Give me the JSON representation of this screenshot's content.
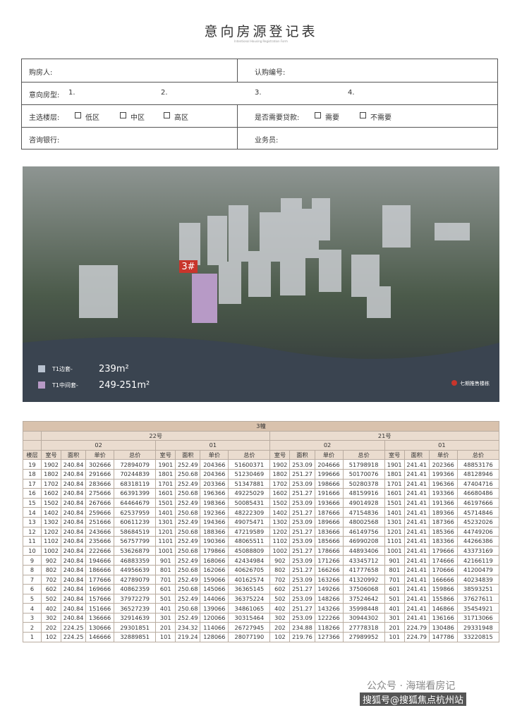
{
  "header": {
    "title": "意向房源登记表",
    "subtitle": "Intentional Housing Registration Form"
  },
  "form": {
    "buyer": "购房人:",
    "subscription_no": "认购编号:",
    "intended_type": "意向房型:",
    "type_options": [
      "1.",
      "2.",
      "3.",
      "4."
    ],
    "floor_pref": "主选楼层:",
    "floor_options": [
      "低区",
      "中区",
      "高区"
    ],
    "loan": "是否需要贷款:",
    "loan_options": [
      "需要",
      "不需要"
    ],
    "bank": "咨询银行:",
    "salesperson": "业务员:"
  },
  "image": {
    "tag": "3#",
    "legend": [
      {
        "name": "T1边套-",
        "area": "239m²"
      },
      {
        "name": "T1中间套-",
        "area": "249-251m²"
      }
    ],
    "marker": "七期推售楼栋"
  },
  "table": {
    "title": "3幢",
    "buildings": [
      "22号",
      "21号"
    ],
    "units": [
      "02",
      "01",
      "02",
      "01"
    ],
    "floor_label": "楼层",
    "unit_columns": [
      "室号",
      "面积",
      "单价",
      "总价"
    ],
    "rows": [
      [
        "19",
        "1902",
        "240.84",
        "302666",
        "72894079",
        "1901",
        "252.49",
        "204366",
        "51600371",
        "1902",
        "253.09",
        "204666",
        "51798918",
        "1901",
        "241.41",
        "202366",
        "48853176"
      ],
      [
        "18",
        "1802",
        "240.84",
        "291666",
        "70244839",
        "1801",
        "250.68",
        "204366",
        "51230469",
        "1802",
        "251.27",
        "199666",
        "50170076",
        "1801",
        "241.41",
        "199366",
        "48128946"
      ],
      [
        "17",
        "1702",
        "240.84",
        "283666",
        "68318119",
        "1701",
        "252.49",
        "203366",
        "51347881",
        "1702",
        "253.09",
        "198666",
        "50280378",
        "1701",
        "241.41",
        "196366",
        "47404716"
      ],
      [
        "16",
        "1602",
        "240.84",
        "275666",
        "66391399",
        "1601",
        "250.68",
        "196366",
        "49225029",
        "1602",
        "251.27",
        "191666",
        "48159916",
        "1601",
        "241.41",
        "193366",
        "46680486"
      ],
      [
        "15",
        "1502",
        "240.84",
        "267666",
        "64464679",
        "1501",
        "252.49",
        "198366",
        "50085431",
        "1502",
        "253.09",
        "193666",
        "49014928",
        "1501",
        "241.41",
        "191366",
        "46197666"
      ],
      [
        "14",
        "1402",
        "240.84",
        "259666",
        "62537959",
        "1401",
        "250.68",
        "192366",
        "48222309",
        "1402",
        "251.27",
        "187666",
        "47154836",
        "1401",
        "241.41",
        "189366",
        "45714846"
      ],
      [
        "13",
        "1302",
        "240.84",
        "251666",
        "60611239",
        "1301",
        "252.49",
        "194366",
        "49075471",
        "1302",
        "253.09",
        "189666",
        "48002568",
        "1301",
        "241.41",
        "187366",
        "45232026"
      ],
      [
        "12",
        "1202",
        "240.84",
        "243666",
        "58684519",
        "1201",
        "250.68",
        "188366",
        "47219589",
        "1202",
        "251.27",
        "183666",
        "46149756",
        "1201",
        "241.41",
        "185366",
        "44749206"
      ],
      [
        "11",
        "1102",
        "240.84",
        "235666",
        "56757799",
        "1101",
        "252.49",
        "190366",
        "48065511",
        "1102",
        "253.09",
        "185666",
        "46990208",
        "1101",
        "241.41",
        "183366",
        "44266386"
      ],
      [
        "10",
        "1002",
        "240.84",
        "222666",
        "53626879",
        "1001",
        "250.68",
        "179866",
        "45088809",
        "1002",
        "251.27",
        "178666",
        "44893406",
        "1001",
        "241.41",
        "179666",
        "43373169"
      ],
      [
        "9",
        "902",
        "240.84",
        "194666",
        "46883359",
        "901",
        "252.49",
        "168066",
        "42434984",
        "902",
        "253.09",
        "171266",
        "43345712",
        "901",
        "241.41",
        "174666",
        "42166119"
      ],
      [
        "8",
        "802",
        "240.84",
        "186666",
        "44956639",
        "801",
        "250.68",
        "162066",
        "40626705",
        "802",
        "251.27",
        "166266",
        "41777658",
        "801",
        "241.41",
        "170666",
        "41200479"
      ],
      [
        "7",
        "702",
        "240.84",
        "177666",
        "42789079",
        "701",
        "252.49",
        "159066",
        "40162574",
        "702",
        "253.09",
        "163266",
        "41320992",
        "701",
        "241.41",
        "166666",
        "40234839"
      ],
      [
        "6",
        "602",
        "240.84",
        "169666",
        "40862359",
        "601",
        "250.68",
        "145066",
        "36365145",
        "602",
        "251.27",
        "149266",
        "37506068",
        "601",
        "241.41",
        "159866",
        "38593251"
      ],
      [
        "5",
        "502",
        "240.84",
        "157666",
        "37972279",
        "501",
        "252.49",
        "144066",
        "36375224",
        "502",
        "253.09",
        "148266",
        "37524642",
        "501",
        "241.41",
        "155866",
        "37627611"
      ],
      [
        "4",
        "402",
        "240.84",
        "151666",
        "36527239",
        "401",
        "250.68",
        "139066",
        "34861065",
        "402",
        "251.27",
        "143266",
        "35998448",
        "401",
        "241.41",
        "146866",
        "35454921"
      ],
      [
        "3",
        "302",
        "240.84",
        "136666",
        "32914639",
        "301",
        "252.49",
        "120066",
        "30315464",
        "302",
        "253.09",
        "122266",
        "30944302",
        "301",
        "241.41",
        "136166",
        "31713066"
      ],
      [
        "2",
        "202",
        "224.25",
        "130666",
        "29301851",
        "201",
        "234.32",
        "114066",
        "26727945",
        "202",
        "234.88",
        "118266",
        "27778318",
        "201",
        "224.79",
        "130486",
        "29331948"
      ],
      [
        "1",
        "102",
        "224.25",
        "146666",
        "32889851",
        "101",
        "219.24",
        "128066",
        "28077190",
        "102",
        "219.76",
        "127366",
        "27989952",
        "101",
        "224.79",
        "147786",
        "33220815"
      ]
    ]
  },
  "footer": {
    "watermark": "公众号 · 海瑞看房记",
    "source": "搜狐号@搜狐焦点杭州站"
  }
}
